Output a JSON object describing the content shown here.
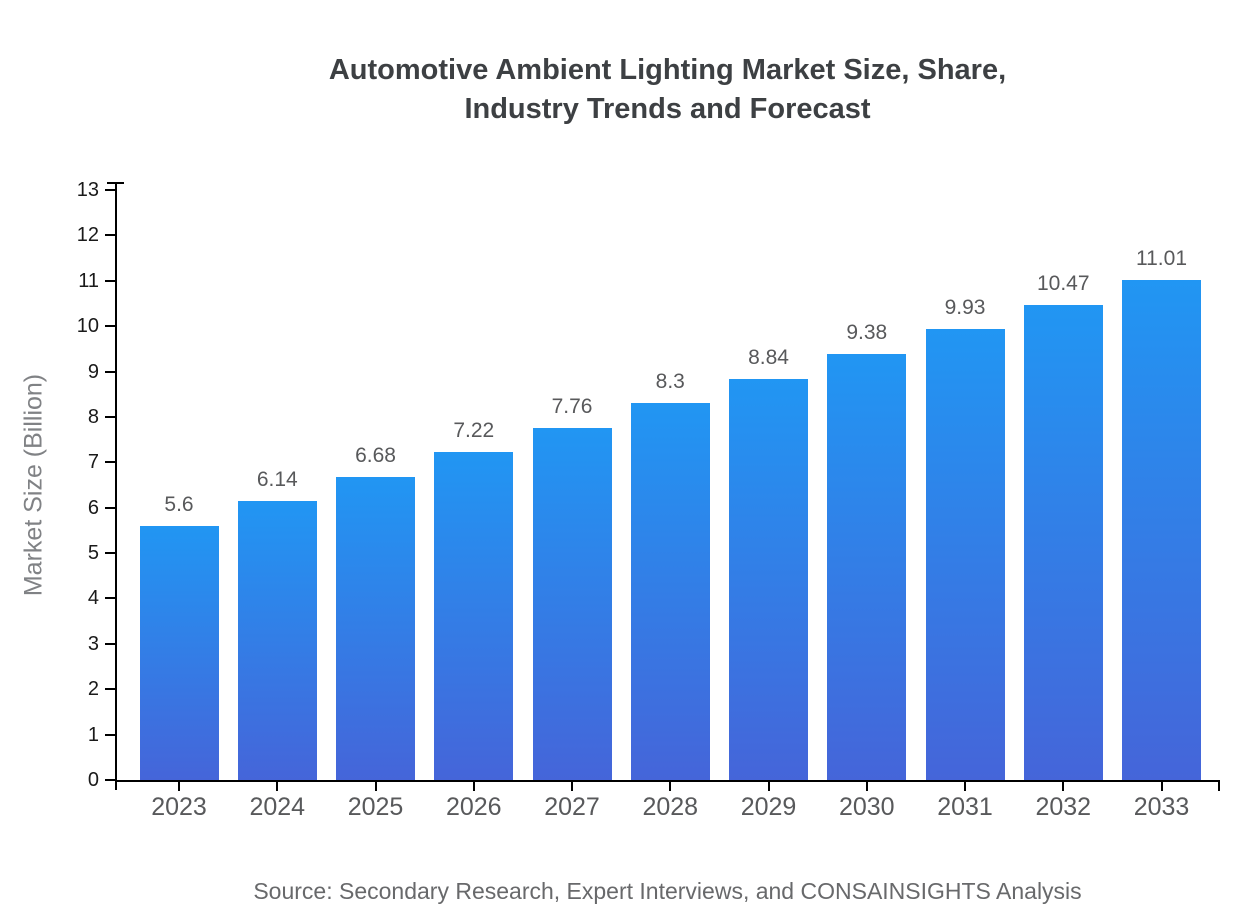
{
  "chart_data": {
    "type": "bar",
    "title": "Automotive Ambient Lighting Market Size, Share, Industry Trends and Forecast",
    "title_lines": [
      "Automotive Ambient Lighting Market Size, Share,",
      "Industry Trends and Forecast"
    ],
    "categories": [
      "2023",
      "2024",
      "2025",
      "2026",
      "2027",
      "2028",
      "2029",
      "2030",
      "2031",
      "2032",
      "2033"
    ],
    "values": [
      5.6,
      6.14,
      6.68,
      7.22,
      7.76,
      8.3,
      8.84,
      9.38,
      9.93,
      10.47,
      11.01
    ],
    "value_labels": [
      "5.6",
      "6.14",
      "6.68",
      "7.22",
      "7.76",
      "8.3",
      "8.84",
      "9.38",
      "9.93",
      "10.47",
      "11.01"
    ],
    "xlabel": "",
    "ylabel": "Market Size (Billion)",
    "ylim": [
      0,
      13
    ],
    "ytick_step": 1,
    "grid": false,
    "legend_position": "none",
    "source": "Source: Secondary Research, Expert Interviews, and CONSAINSIGHTS Analysis",
    "colors": {
      "bar_gradient_top": "#2196f3",
      "bar_gradient_bottom": "#4565d9",
      "axis": "#000000",
      "y_tick_label": "#1a1a1a",
      "x_tick_label": "#58595b",
      "value_label": "#58595b",
      "title": "#3d4043",
      "y_axis_title": "#808285",
      "source": "#68696b",
      "background": "#ffffff"
    }
  }
}
